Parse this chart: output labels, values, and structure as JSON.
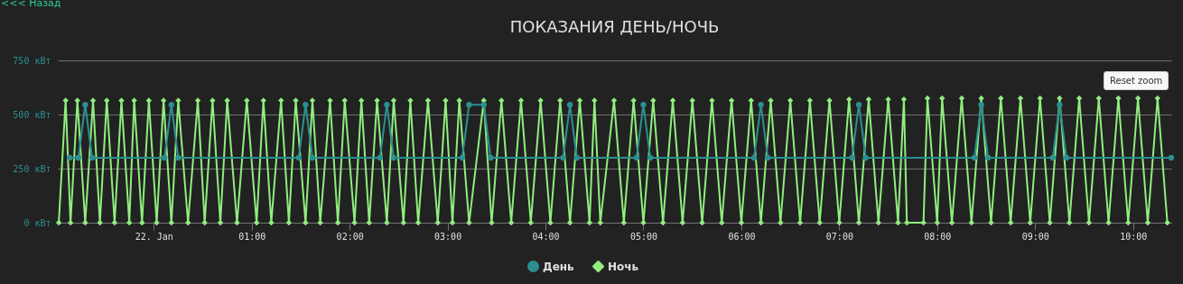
{
  "chart_data": {
    "type": "line",
    "title": "ПОКАЗАНИЯ ДЕНЬ/НОЧЬ",
    "annotations": [
      "<<< Назад",
      "Reset zoom"
    ],
    "xlim": [
      -0.98,
      10.39
    ],
    "xticks": [
      {
        "value": 0,
        "label": "22. Jan"
      },
      {
        "value": 1,
        "label": "01:00"
      },
      {
        "value": 2,
        "label": "02:00"
      },
      {
        "value": 3,
        "label": "03:00"
      },
      {
        "value": 4,
        "label": "04:00"
      },
      {
        "value": 5,
        "label": "05:00"
      },
      {
        "value": 6,
        "label": "06:00"
      },
      {
        "value": 7,
        "label": "07:00"
      },
      {
        "value": 8,
        "label": "08:00"
      },
      {
        "value": 9,
        "label": "09:00"
      },
      {
        "value": 10,
        "label": "10:00"
      }
    ],
    "ylim": [
      0,
      750
    ],
    "yticks": [
      {
        "value": 0,
        "label": "0 кВт"
      },
      {
        "value": 250,
        "label": "250 кВт"
      },
      {
        "value": 500,
        "label": "500 кВт"
      },
      {
        "value": 750,
        "label": "750 кВт"
      }
    ],
    "grid": "y",
    "legend": "bottom",
    "series": [
      {
        "name": "День",
        "color": "#2b908f",
        "marker": "circle",
        "x": [
          -0.86,
          -0.77,
          -0.7,
          -0.63,
          0.11,
          0.18,
          0.25,
          1.48,
          1.55,
          1.62,
          2.31,
          2.38,
          2.45,
          3.15,
          3.22,
          3.37,
          3.44,
          4.18,
          4.25,
          4.32,
          4.93,
          5.0,
          5.07,
          6.13,
          6.2,
          6.27,
          7.13,
          7.2,
          7.27,
          8.38,
          8.45,
          8.52,
          9.18,
          9.25,
          9.32,
          10.39
        ],
        "values": [
          300,
          300,
          545,
          300,
          300,
          545,
          300,
          300,
          545,
          300,
          300,
          545,
          300,
          300,
          545,
          545,
          300,
          300,
          545,
          300,
          300,
          545,
          300,
          300,
          545,
          300,
          300,
          545,
          300,
          300,
          545,
          300,
          300,
          545,
          300,
          300
        ]
      },
      {
        "name": "Ночь",
        "color": "#90ee7e",
        "marker": "diamond",
        "x": [
          -0.97,
          -0.9,
          -0.85,
          -0.78,
          -0.7,
          -0.62,
          -0.55,
          -0.48,
          -0.4,
          -0.33,
          -0.25,
          -0.2,
          -0.12,
          -0.05,
          0.03,
          0.1,
          0.18,
          0.25,
          0.35,
          0.45,
          0.52,
          0.6,
          0.68,
          0.75,
          0.85,
          0.95,
          1.05,
          1.12,
          1.2,
          1.3,
          1.38,
          1.45,
          1.55,
          1.62,
          1.7,
          1.8,
          1.88,
          1.95,
          2.05,
          2.12,
          2.2,
          2.28,
          2.38,
          2.45,
          2.55,
          2.62,
          2.7,
          2.8,
          2.9,
          2.98,
          3.05,
          3.12,
          3.22,
          3.37,
          3.45,
          3.55,
          3.65,
          3.75,
          3.85,
          3.95,
          4.05,
          4.15,
          4.25,
          4.35,
          4.45,
          4.5,
          4.56,
          4.7,
          4.8,
          4.9,
          5.0,
          5.1,
          5.2,
          5.3,
          5.4,
          5.5,
          5.6,
          5.7,
          5.8,
          5.9,
          6.0,
          6.1,
          6.2,
          6.3,
          6.4,
          6.5,
          6.6,
          6.7,
          6.8,
          6.9,
          7.0,
          7.1,
          7.2,
          7.3,
          7.4,
          7.5,
          7.6,
          7.66,
          7.69,
          7.86,
          7.9,
          8.0,
          8.05,
          8.15,
          8.25,
          8.35,
          8.45,
          8.55,
          8.65,
          8.75,
          8.85,
          8.95,
          9.05,
          9.15,
          9.25,
          9.35,
          9.45,
          9.55,
          9.65,
          9.75,
          9.85,
          9.95,
          10.05,
          10.15,
          10.25,
          10.35
        ],
        "values": [
          0,
          565,
          0,
          565,
          0,
          565,
          0,
          565,
          0,
          565,
          0,
          565,
          0,
          565,
          0,
          565,
          0,
          565,
          0,
          565,
          0,
          565,
          0,
          565,
          0,
          565,
          0,
          565,
          0,
          565,
          0,
          565,
          0,
          565,
          0,
          565,
          0,
          565,
          0,
          565,
          0,
          565,
          0,
          565,
          0,
          565,
          0,
          565,
          0,
          565,
          0,
          565,
          0,
          565,
          0,
          565,
          0,
          565,
          0,
          565,
          0,
          565,
          0,
          565,
          0,
          565,
          0,
          565,
          0,
          565,
          0,
          565,
          0,
          565,
          0,
          565,
          0,
          565,
          0,
          565,
          0,
          565,
          0,
          565,
          0,
          565,
          0,
          565,
          0,
          565,
          0,
          570,
          0,
          570,
          0,
          570,
          0,
          570,
          0,
          0,
          575,
          0,
          575,
          0,
          575,
          0,
          575,
          0,
          575,
          0,
          575,
          0,
          575,
          0,
          575,
          0,
          575,
          0,
          575,
          0,
          575,
          0,
          575,
          0,
          575,
          0
        ]
      }
    ]
  }
}
